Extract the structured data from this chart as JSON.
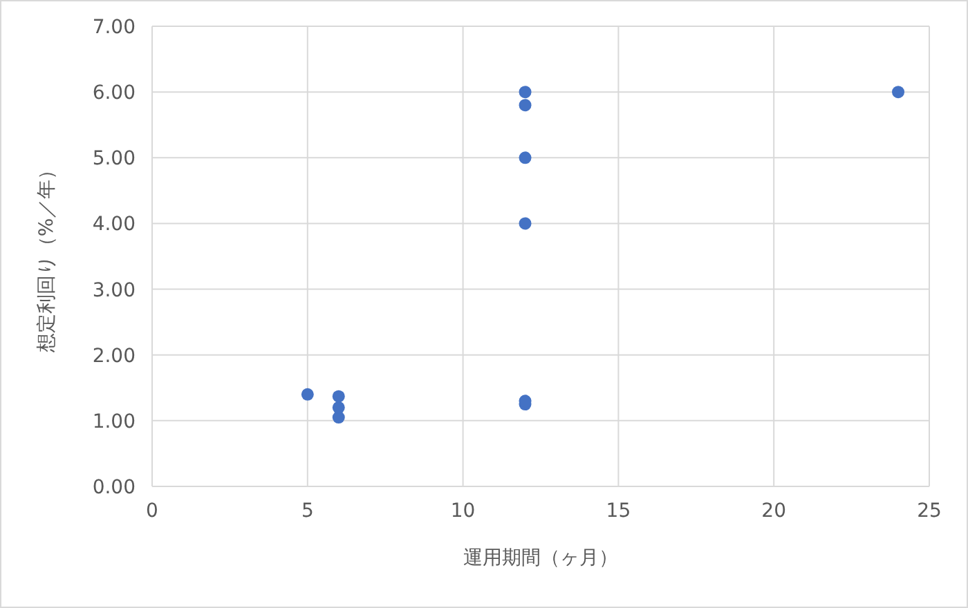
{
  "chart_data": {
    "type": "scatter",
    "xlabel": "運用期間（ヶ月）",
    "ylabel": "想定利回り（%／年）",
    "series": [
      {
        "color": "#4472c4",
        "x": [
          5,
          6,
          6,
          6,
          12,
          12,
          12,
          12,
          12,
          12,
          24
        ],
        "values": [
          1.4,
          1.05,
          1.2,
          1.37,
          6.0,
          5.8,
          5.0,
          4.0,
          1.25,
          1.3,
          6.0
        ]
      }
    ],
    "xlim": [
      0,
      25
    ],
    "xticks": [
      0,
      5,
      10,
      15,
      20,
      25
    ],
    "ylim": [
      0,
      7
    ],
    "yticks": [
      {
        "value": 0,
        "label": "0.00"
      },
      {
        "value": 1,
        "label": "1.00"
      },
      {
        "value": 2,
        "label": "2.00"
      },
      {
        "value": 3,
        "label": "3.00"
      },
      {
        "value": 4,
        "label": "4.00"
      },
      {
        "value": 5,
        "label": "5.00"
      },
      {
        "value": 6,
        "label": "6.00"
      },
      {
        "value": 7,
        "label": "7.00"
      }
    ],
    "grid": true,
    "marker": "circle"
  }
}
